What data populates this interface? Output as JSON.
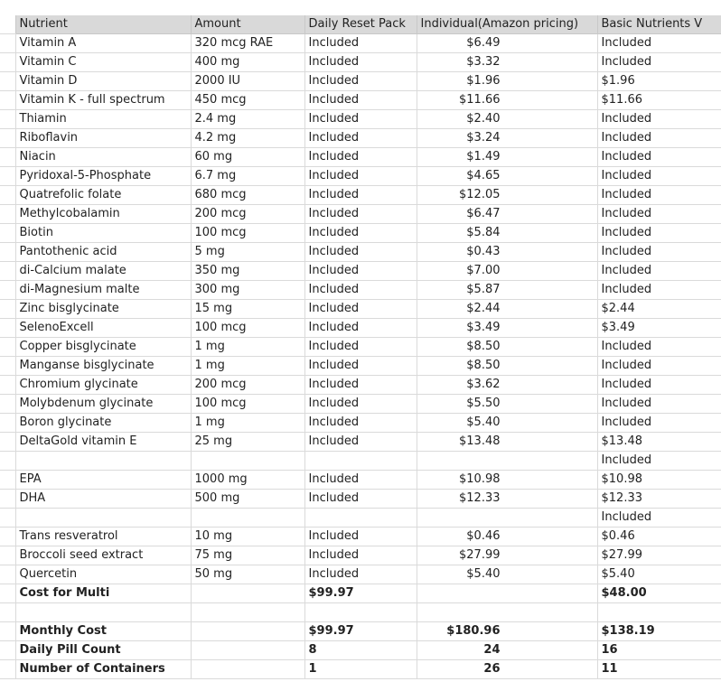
{
  "header": [
    "Nutrient",
    "Amount",
    "Daily Reset Pack",
    "Individual(Amazon pricing)",
    "Basic Nutrients V"
  ],
  "rows": [
    {
      "nutrient": "Vitamin A",
      "amount": "320 mcg RAE",
      "reset": "Included",
      "individual": "$6.49",
      "basic": "Included"
    },
    {
      "nutrient": "Vitamin C",
      "amount": "400 mg",
      "reset": "Included",
      "individual": "$3.32",
      "basic": "Included"
    },
    {
      "nutrient": "Vitamin D",
      "amount": "2000 IU",
      "reset": "Included",
      "individual": "$1.96",
      "basic": "$1.96"
    },
    {
      "nutrient": "Vitamin K - full spectrum",
      "amount": "450 mcg",
      "reset": "Included",
      "individual": "$11.66",
      "basic": "$11.66"
    },
    {
      "nutrient": "Thiamin",
      "amount": "2.4 mg",
      "reset": "Included",
      "individual": "$2.40",
      "basic": "Included"
    },
    {
      "nutrient": "Riboflavin",
      "amount": "4.2 mg",
      "reset": "Included",
      "individual": "$3.24",
      "basic": "Included"
    },
    {
      "nutrient": "Niacin",
      "amount": "60 mg",
      "reset": "Included",
      "individual": "$1.49",
      "basic": "Included"
    },
    {
      "nutrient": "Pyridoxal-5-Phosphate",
      "amount": "6.7 mg",
      "reset": "Included",
      "individual": "$4.65",
      "basic": "Included"
    },
    {
      "nutrient": "Quatrefolic folate",
      "amount": "680 mcg",
      "reset": "Included",
      "individual": "$12.05",
      "basic": "Included"
    },
    {
      "nutrient": "Methylcobalamin",
      "amount": "200 mcg",
      "reset": "Included",
      "individual": "$6.47",
      "basic": "Included"
    },
    {
      "nutrient": "Biotin",
      "amount": "100 mcg",
      "reset": "Included",
      "individual": "$5.84",
      "basic": "Included"
    },
    {
      "nutrient": "Pantothenic acid",
      "amount": "5 mg",
      "reset": "Included",
      "individual": "$0.43",
      "basic": "Included"
    },
    {
      "nutrient": "di-Calcium malate",
      "amount": "350 mg",
      "reset": "Included",
      "individual": "$7.00",
      "basic": "Included"
    },
    {
      "nutrient": "di-Magnesium malte",
      "amount": "300 mg",
      "reset": "Included",
      "individual": "$5.87",
      "basic": "Included"
    },
    {
      "nutrient": "Zinc bisglycinate",
      "amount": "15 mg",
      "reset": "Included",
      "individual": "$2.44",
      "basic": "$2.44"
    },
    {
      "nutrient": "SelenoExcell",
      "amount": "100 mcg",
      "reset": "Included",
      "individual": "$3.49",
      "basic": "$3.49"
    },
    {
      "nutrient": "Copper bisglycinate",
      "amount": "1 mg",
      "reset": "Included",
      "individual": "$8.50",
      "basic": "Included"
    },
    {
      "nutrient": "Manganse bisglycinate",
      "amount": "1 mg",
      "reset": "Included",
      "individual": "$8.50",
      "basic": "Included"
    },
    {
      "nutrient": "Chromium glycinate",
      "amount": "200 mcg",
      "reset": "Included",
      "individual": "$3.62",
      "basic": "Included"
    },
    {
      "nutrient": "Molybdenum glycinate",
      "amount": "100 mcg",
      "reset": "Included",
      "individual": "$5.50",
      "basic": "Included"
    },
    {
      "nutrient": "Boron glycinate",
      "amount": "1 mg",
      "reset": "Included",
      "individual": "$5.40",
      "basic": "Included"
    },
    {
      "nutrient": "DeltaGold vitamin E",
      "amount": "25 mg",
      "reset": "Included",
      "individual": "$13.48",
      "basic": "$13.48"
    },
    {
      "nutrient": "",
      "amount": "",
      "reset": "",
      "individual": "",
      "basic": "Included"
    },
    {
      "nutrient": "EPA",
      "amount": "1000 mg",
      "reset": "Included",
      "individual": "$10.98",
      "basic": "$10.98"
    },
    {
      "nutrient": "DHA",
      "amount": "500 mg",
      "reset": "Included",
      "individual": "$12.33",
      "basic": "$12.33"
    },
    {
      "nutrient": "",
      "amount": "",
      "reset": "",
      "individual": "",
      "basic": "Included"
    },
    {
      "nutrient": "Trans resveratrol",
      "amount": "10 mg",
      "reset": "Included",
      "individual": "$0.46",
      "basic": "$0.46"
    },
    {
      "nutrient": "Broccoli seed extract",
      "amount": "75 mg",
      "reset": "Included",
      "individual": "$27.99",
      "basic": "$27.99"
    },
    {
      "nutrient": "Quercetin",
      "amount": "50 mg",
      "reset": "Included",
      "individual": "$5.40",
      "basic": "$5.40"
    },
    {
      "nutrient": "Cost for Multi",
      "amount": "",
      "reset": "$99.97",
      "individual": "",
      "basic": "$48.00",
      "bold": true
    },
    {
      "nutrient": "",
      "amount": "",
      "reset": "",
      "individual": "",
      "basic": ""
    },
    {
      "nutrient": "Monthly Cost",
      "amount": "",
      "reset": "$99.97",
      "individual": "$180.96",
      "basic": "$138.19",
      "bold": true
    },
    {
      "nutrient": "Daily Pill Count",
      "amount": "",
      "reset": "8",
      "individual": "24",
      "basic": "16",
      "bold": true
    },
    {
      "nutrient": "Number of Containers",
      "amount": "",
      "reset": "1",
      "individual": "26",
      "basic": "11",
      "bold": true
    }
  ]
}
